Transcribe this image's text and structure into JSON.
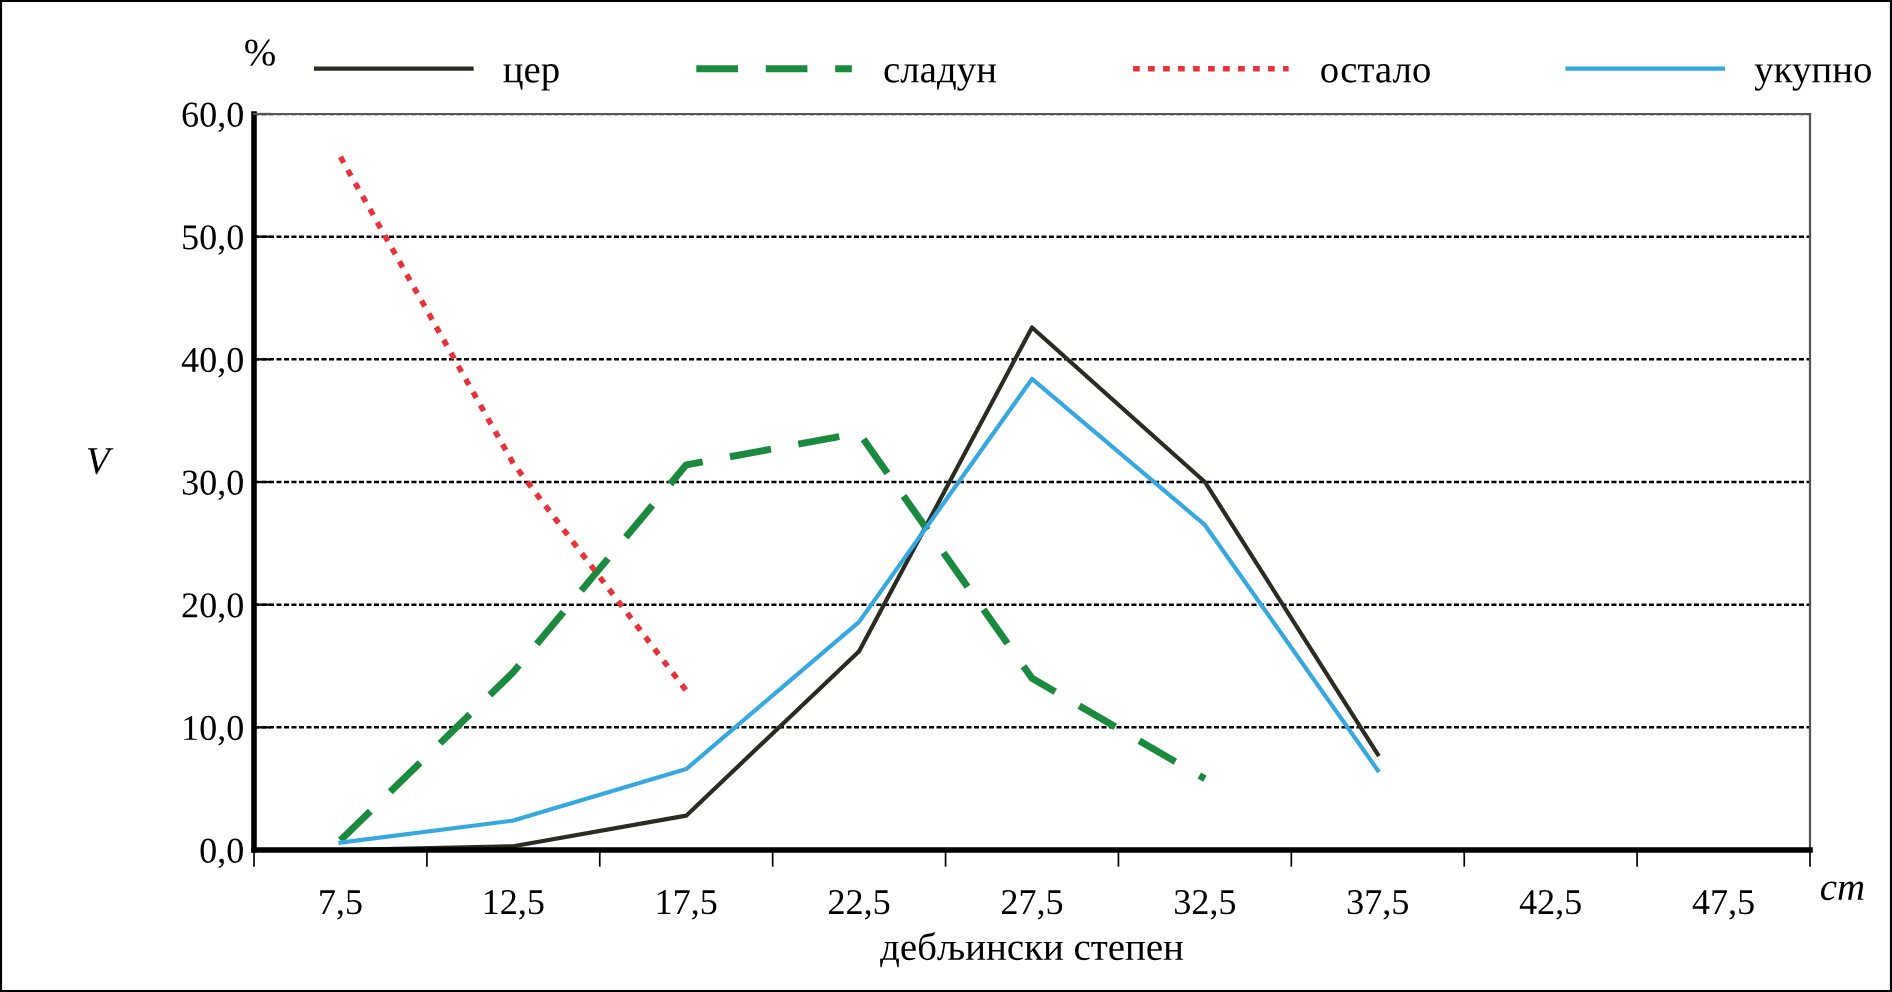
{
  "chart_data": {
    "type": "line",
    "xlabel": "дебљински степен",
    "ylabel": "V",
    "annotations": [
      "%",
      "cm"
    ],
    "categories": [
      "7,5",
      "12,5",
      "17,5",
      "22,5",
      "27,5",
      "32,5",
      "37,5",
      "42,5",
      "47,5"
    ],
    "series": [
      {
        "name": "цер",
        "color": "#2b2b22",
        "line_style": "solid",
        "values": [
          0.0,
          0.3,
          2.8,
          16.2,
          42.6,
          30.0,
          7.8,
          null,
          null
        ]
      },
      {
        "name": "сладун",
        "color": "#1a8a3e",
        "line_style": "dashed",
        "values": [
          0.8,
          14.5,
          31.4,
          34.0,
          14.0,
          5.8,
          null,
          null,
          null
        ]
      },
      {
        "name": "остало",
        "color": "#e8323a",
        "line_style": "dotted",
        "values": [
          56.5,
          31.5,
          13.0,
          null,
          null,
          null,
          null,
          null,
          null
        ]
      },
      {
        "name": "укупно",
        "color": "#35a8e0",
        "line_style": "solid",
        "values": [
          0.6,
          2.4,
          6.6,
          18.6,
          38.4,
          26.5,
          6.5,
          null,
          null
        ]
      }
    ],
    "ylim": [
      0,
      60
    ],
    "yticks": [
      {
        "value": 0,
        "label": "0,0"
      },
      {
        "value": 10,
        "label": "10,0"
      },
      {
        "value": 20,
        "label": "20,0"
      },
      {
        "value": 30,
        "label": "30,0"
      },
      {
        "value": 40,
        "label": "40,0"
      },
      {
        "value": 50,
        "label": "50,0"
      },
      {
        "value": 60,
        "label": "60,0"
      }
    ],
    "grid": "y",
    "legend": "top",
    "marker": "none"
  }
}
